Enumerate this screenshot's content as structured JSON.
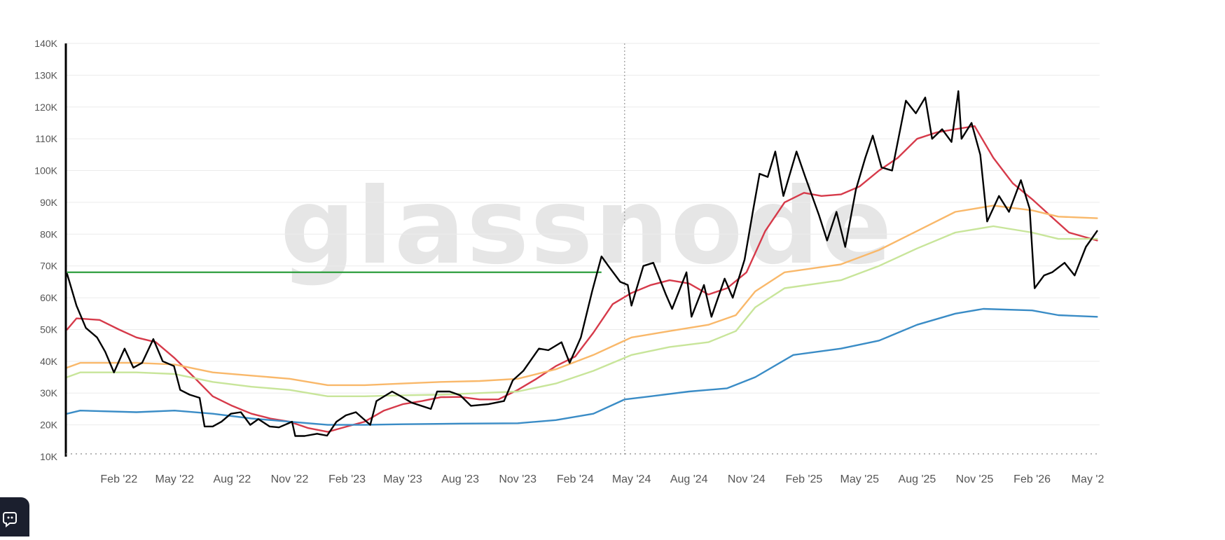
{
  "watermark": "glassnode",
  "chart_data": {
    "type": "line",
    "title": "",
    "xlabel": "",
    "ylabel": "",
    "ylim": [
      10000,
      140000
    ],
    "y_ticks": [
      10000,
      20000,
      30000,
      40000,
      50000,
      60000,
      70000,
      80000,
      90000,
      100000,
      110000,
      120000,
      130000,
      140000
    ],
    "y_tick_labels": [
      "10K",
      "20K",
      "30K",
      "40K",
      "50K",
      "60K",
      "70K",
      "80K",
      "90K",
      "100K",
      "110K",
      "120K",
      "130K",
      "140K"
    ],
    "xlim": [
      "2021-11-08",
      "2026-05-20"
    ],
    "x_ticks": [
      "2022-02-01",
      "2022-05-01",
      "2022-08-01",
      "2022-11-01",
      "2023-02-01",
      "2023-05-01",
      "2023-08-01",
      "2023-11-01",
      "2024-02-01",
      "2024-05-01",
      "2024-08-01",
      "2024-11-01",
      "2025-02-01",
      "2025-05-01",
      "2025-08-01",
      "2025-11-01",
      "2026-02-01",
      "2026-05-01"
    ],
    "x_tick_labels": [
      "Feb '22",
      "May '22",
      "Aug '22",
      "Nov '22",
      "Feb '23",
      "May '23",
      "Aug '23",
      "Nov '23",
      "Feb '24",
      "May '24",
      "Aug '24",
      "Nov '24",
      "Feb '25",
      "May '25",
      "Aug '25",
      "Nov '25",
      "Feb '26",
      "May '2"
    ],
    "grid": true,
    "vertical_marker": "2024-04-20",
    "horizontal_reference": {
      "value": 68000,
      "from": "2021-11-10",
      "to": "2024-03-14",
      "color": "#2e9e3e"
    },
    "series": [
      {
        "color": "#000000",
        "points": [
          [
            "2021-11-10",
            67500
          ],
          [
            "2021-11-25",
            57500
          ],
          [
            "2021-12-10",
            50500
          ],
          [
            "2021-12-28",
            47500
          ],
          [
            "2022-01-10",
            43000
          ],
          [
            "2022-01-24",
            36500
          ],
          [
            "2022-02-10",
            44000
          ],
          [
            "2022-02-24",
            38000
          ],
          [
            "2022-03-10",
            39500
          ],
          [
            "2022-03-28",
            47000
          ],
          [
            "2022-04-12",
            40000
          ],
          [
            "2022-04-30",
            38500
          ],
          [
            "2022-05-10",
            31000
          ],
          [
            "2022-05-25",
            29500
          ],
          [
            "2022-06-10",
            28500
          ],
          [
            "2022-06-18",
            19500
          ],
          [
            "2022-07-01",
            19500
          ],
          [
            "2022-07-15",
            21000
          ],
          [
            "2022-07-30",
            23500
          ],
          [
            "2022-08-15",
            24000
          ],
          [
            "2022-08-30",
            20000
          ],
          [
            "2022-09-12",
            21800
          ],
          [
            "2022-09-30",
            19500
          ],
          [
            "2022-10-15",
            19200
          ],
          [
            "2022-11-05",
            21000
          ],
          [
            "2022-11-10",
            16500
          ],
          [
            "2022-11-25",
            16500
          ],
          [
            "2022-12-15",
            17200
          ],
          [
            "2022-12-31",
            16600
          ],
          [
            "2023-01-15",
            21000
          ],
          [
            "2023-01-30",
            23000
          ],
          [
            "2023-02-15",
            24000
          ],
          [
            "2023-03-10",
            20000
          ],
          [
            "2023-03-20",
            27500
          ],
          [
            "2023-04-14",
            30500
          ],
          [
            "2023-04-28",
            29000
          ],
          [
            "2023-05-15",
            27000
          ],
          [
            "2023-06-15",
            25000
          ],
          [
            "2023-06-25",
            30500
          ],
          [
            "2023-07-15",
            30500
          ],
          [
            "2023-08-01",
            29300
          ],
          [
            "2023-08-18",
            26000
          ],
          [
            "2023-09-15",
            26500
          ],
          [
            "2023-10-10",
            27500
          ],
          [
            "2023-10-24",
            34000
          ],
          [
            "2023-11-10",
            37000
          ],
          [
            "2023-12-05",
            44000
          ],
          [
            "2023-12-20",
            43500
          ],
          [
            "2024-01-10",
            46000
          ],
          [
            "2024-01-23",
            39500
          ],
          [
            "2024-02-10",
            47500
          ],
          [
            "2024-02-28",
            62000
          ],
          [
            "2024-03-14",
            73000
          ],
          [
            "2024-03-25",
            70000
          ],
          [
            "2024-04-13",
            65000
          ],
          [
            "2024-04-25",
            64000
          ],
          [
            "2024-05-01",
            57500
          ],
          [
            "2024-05-20",
            70000
          ],
          [
            "2024-06-05",
            71000
          ],
          [
            "2024-06-25",
            61000
          ],
          [
            "2024-07-05",
            56500
          ],
          [
            "2024-07-28",
            68000
          ],
          [
            "2024-08-05",
            54000
          ],
          [
            "2024-08-25",
            64000
          ],
          [
            "2024-09-06",
            54000
          ],
          [
            "2024-09-27",
            66000
          ],
          [
            "2024-10-10",
            60000
          ],
          [
            "2024-10-29",
            72000
          ],
          [
            "2024-11-12",
            88000
          ],
          [
            "2024-11-22",
            99000
          ],
          [
            "2024-12-05",
            98000
          ],
          [
            "2024-12-17",
            106000
          ],
          [
            "2024-12-30",
            92000
          ],
          [
            "2025-01-20",
            106000
          ],
          [
            "2025-02-03",
            98000
          ],
          [
            "2025-02-25",
            86000
          ],
          [
            "2025-03-10",
            78000
          ],
          [
            "2025-03-25",
            87000
          ],
          [
            "2025-04-08",
            76000
          ],
          [
            "2025-04-25",
            94000
          ],
          [
            "2025-05-10",
            104000
          ],
          [
            "2025-05-22",
            111000
          ],
          [
            "2025-06-05",
            101000
          ],
          [
            "2025-06-22",
            100000
          ],
          [
            "2025-07-14",
            122000
          ],
          [
            "2025-07-30",
            118000
          ],
          [
            "2025-08-14",
            123000
          ],
          [
            "2025-08-25",
            110000
          ],
          [
            "2025-09-10",
            113000
          ],
          [
            "2025-09-25",
            109000
          ],
          [
            "2025-10-06",
            125000
          ],
          [
            "2025-10-11",
            110000
          ],
          [
            "2025-10-27",
            115000
          ],
          [
            "2025-11-10",
            105000
          ],
          [
            "2025-11-21",
            84000
          ],
          [
            "2025-12-10",
            92000
          ],
          [
            "2025-12-26",
            87000
          ],
          [
            "2026-01-14",
            97000
          ],
          [
            "2026-01-28",
            88000
          ],
          [
            "2026-02-05",
            63000
          ],
          [
            "2026-02-20",
            67000
          ],
          [
            "2026-03-05",
            68000
          ],
          [
            "2026-03-25",
            71000
          ],
          [
            "2026-04-10",
            67000
          ],
          [
            "2026-04-28",
            76000
          ],
          [
            "2026-05-16",
            81000
          ]
        ]
      },
      {
        "color": "#d63a4a",
        "points": [
          [
            "2021-11-10",
            50000
          ],
          [
            "2021-11-25",
            53500
          ],
          [
            "2022-01-01",
            53000
          ],
          [
            "2022-02-01",
            50000
          ],
          [
            "2022-03-01",
            47500
          ],
          [
            "2022-04-01",
            46000
          ],
          [
            "2022-05-01",
            41000
          ],
          [
            "2022-06-01",
            35000
          ],
          [
            "2022-07-01",
            29000
          ],
          [
            "2022-08-01",
            26000
          ],
          [
            "2022-09-01",
            23500
          ],
          [
            "2022-10-01",
            22000
          ],
          [
            "2022-11-01",
            21000
          ],
          [
            "2022-12-01",
            19000
          ],
          [
            "2023-01-01",
            17800
          ],
          [
            "2023-02-01",
            19500
          ],
          [
            "2023-03-01",
            21000
          ],
          [
            "2023-04-01",
            24500
          ],
          [
            "2023-05-01",
            26500
          ],
          [
            "2023-06-01",
            27500
          ],
          [
            "2023-07-01",
            28700
          ],
          [
            "2023-08-01",
            28800
          ],
          [
            "2023-09-01",
            28000
          ],
          [
            "2023-10-01",
            28000
          ],
          [
            "2023-11-01",
            31000
          ],
          [
            "2023-12-01",
            34500
          ],
          [
            "2024-01-01",
            38500
          ],
          [
            "2024-02-01",
            41500
          ],
          [
            "2024-03-01",
            49000
          ],
          [
            "2024-04-01",
            58000
          ],
          [
            "2024-05-01",
            61500
          ],
          [
            "2024-06-01",
            64000
          ],
          [
            "2024-07-01",
            65500
          ],
          [
            "2024-08-01",
            64500
          ],
          [
            "2024-09-01",
            61000
          ],
          [
            "2024-10-01",
            63000
          ],
          [
            "2024-11-01",
            68000
          ],
          [
            "2024-12-01",
            81000
          ],
          [
            "2025-01-01",
            90000
          ],
          [
            "2025-02-01",
            93000
          ],
          [
            "2025-03-01",
            92000
          ],
          [
            "2025-04-01",
            92500
          ],
          [
            "2025-05-01",
            95000
          ],
          [
            "2025-06-01",
            100000
          ],
          [
            "2025-07-01",
            104000
          ],
          [
            "2025-08-01",
            110000
          ],
          [
            "2025-09-01",
            112000
          ],
          [
            "2025-10-01",
            113000
          ],
          [
            "2025-11-01",
            114000
          ],
          [
            "2025-12-01",
            104000
          ],
          [
            "2026-01-01",
            96000
          ],
          [
            "2026-02-01",
            91000
          ],
          [
            "2026-03-01",
            86000
          ],
          [
            "2026-04-01",
            80500
          ],
          [
            "2026-05-16",
            78000
          ]
        ]
      },
      {
        "color": "#f9b86a",
        "points": [
          [
            "2021-11-10",
            38000
          ],
          [
            "2021-12-01",
            39500
          ],
          [
            "2022-03-01",
            39500
          ],
          [
            "2022-05-01",
            39000
          ],
          [
            "2022-07-01",
            36500
          ],
          [
            "2022-09-01",
            35500
          ],
          [
            "2022-11-01",
            34500
          ],
          [
            "2023-01-01",
            32500
          ],
          [
            "2023-03-01",
            32500
          ],
          [
            "2023-05-01",
            33000
          ],
          [
            "2023-07-01",
            33500
          ],
          [
            "2023-09-01",
            33800
          ],
          [
            "2023-11-01",
            34500
          ],
          [
            "2024-01-01",
            37500
          ],
          [
            "2024-03-01",
            42000
          ],
          [
            "2024-05-01",
            47500
          ],
          [
            "2024-07-01",
            49500
          ],
          [
            "2024-09-01",
            51500
          ],
          [
            "2024-10-15",
            54500
          ],
          [
            "2024-11-15",
            62000
          ],
          [
            "2025-01-01",
            68000
          ],
          [
            "2025-04-01",
            70500
          ],
          [
            "2025-06-01",
            75000
          ],
          [
            "2025-08-01",
            81000
          ],
          [
            "2025-10-01",
            87000
          ],
          [
            "2025-12-01",
            89000
          ],
          [
            "2026-02-01",
            87500
          ],
          [
            "2026-03-15",
            85500
          ],
          [
            "2026-05-16",
            85000
          ]
        ]
      },
      {
        "color": "#c8e59a",
        "points": [
          [
            "2021-11-10",
            35000
          ],
          [
            "2021-12-01",
            36500
          ],
          [
            "2022-03-01",
            36500
          ],
          [
            "2022-05-01",
            36000
          ],
          [
            "2022-07-01",
            33500
          ],
          [
            "2022-09-01",
            32000
          ],
          [
            "2022-11-01",
            31000
          ],
          [
            "2023-01-01",
            29000
          ],
          [
            "2023-03-01",
            29000
          ],
          [
            "2023-05-01",
            29300
          ],
          [
            "2023-07-01",
            29500
          ],
          [
            "2023-09-01",
            30000
          ],
          [
            "2023-11-01",
            30500
          ],
          [
            "2024-01-01",
            33000
          ],
          [
            "2024-03-01",
            37000
          ],
          [
            "2024-05-01",
            42000
          ],
          [
            "2024-07-01",
            44500
          ],
          [
            "2024-09-01",
            46000
          ],
          [
            "2024-10-15",
            49500
          ],
          [
            "2024-11-15",
            57000
          ],
          [
            "2025-01-01",
            63000
          ],
          [
            "2025-04-01",
            65500
          ],
          [
            "2025-06-01",
            70000
          ],
          [
            "2025-08-01",
            75500
          ],
          [
            "2025-10-01",
            80500
          ],
          [
            "2025-12-01",
            82500
          ],
          [
            "2026-02-01",
            80500
          ],
          [
            "2026-03-15",
            78500
          ],
          [
            "2026-05-16",
            78500
          ]
        ]
      },
      {
        "color": "#3a8cc6",
        "points": [
          [
            "2021-11-10",
            23500
          ],
          [
            "2021-12-01",
            24500
          ],
          [
            "2022-03-01",
            24000
          ],
          [
            "2022-05-01",
            24500
          ],
          [
            "2022-07-01",
            23500
          ],
          [
            "2022-09-01",
            22000
          ],
          [
            "2022-11-01",
            21000
          ],
          [
            "2023-01-01",
            20000
          ],
          [
            "2023-03-01",
            20000
          ],
          [
            "2023-05-01",
            20200
          ],
          [
            "2023-08-01",
            20400
          ],
          [
            "2023-11-01",
            20500
          ],
          [
            "2024-01-01",
            21500
          ],
          [
            "2024-03-01",
            23500
          ],
          [
            "2024-04-20",
            28000
          ],
          [
            "2024-06-01",
            29000
          ],
          [
            "2024-08-01",
            30500
          ],
          [
            "2024-10-01",
            31500
          ],
          [
            "2024-11-15",
            35000
          ],
          [
            "2025-01-15",
            42000
          ],
          [
            "2025-04-01",
            44000
          ],
          [
            "2025-06-01",
            46500
          ],
          [
            "2025-08-01",
            51500
          ],
          [
            "2025-10-01",
            55000
          ],
          [
            "2025-11-15",
            56500
          ],
          [
            "2026-02-01",
            56000
          ],
          [
            "2026-03-15",
            54500
          ],
          [
            "2026-05-16",
            54000
          ]
        ]
      }
    ]
  }
}
